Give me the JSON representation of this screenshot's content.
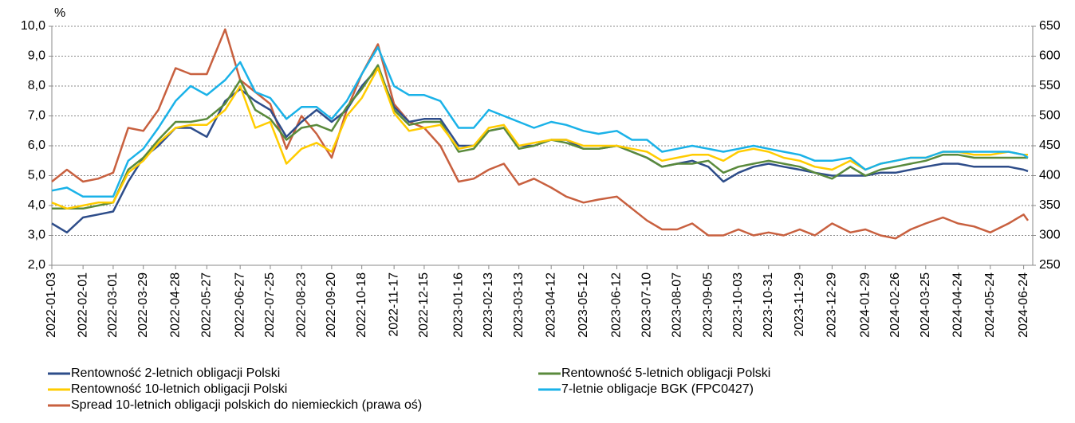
{
  "chart_data": {
    "type": "line",
    "ylabel": "%",
    "x": [
      "2022-01-03",
      "2022-01-17",
      "2022-02-01",
      "2022-02-15",
      "2022-03-01",
      "2022-03-15",
      "2022-03-29",
      "2022-04-12",
      "2022-04-28",
      "2022-05-12",
      "2022-05-27",
      "2022-06-13",
      "2022-06-27",
      "2022-07-11",
      "2022-07-25",
      "2022-08-09",
      "2022-08-23",
      "2022-09-06",
      "2022-09-20",
      "2022-10-04",
      "2022-10-18",
      "2022-11-02",
      "2022-11-17",
      "2022-12-01",
      "2022-12-15",
      "2022-12-30",
      "2023-01-16",
      "2023-01-30",
      "2023-02-13",
      "2023-02-27",
      "2023-03-13",
      "2023-03-27",
      "2023-04-12",
      "2023-04-26",
      "2023-05-12",
      "2023-05-26",
      "2023-06-12",
      "2023-06-26",
      "2023-07-10",
      "2023-07-24",
      "2023-08-07",
      "2023-08-21",
      "2023-09-05",
      "2023-09-19",
      "2023-10-03",
      "2023-10-17",
      "2023-10-31",
      "2023-11-14",
      "2023-11-29",
      "2023-12-13",
      "2023-12-29",
      "2024-01-15",
      "2024-01-29",
      "2024-02-12",
      "2024-02-26",
      "2024-03-11",
      "2024-03-25",
      "2024-04-10",
      "2024-04-24",
      "2024-05-09",
      "2024-05-24",
      "2024-06-10",
      "2024-06-24",
      "2024-06-28"
    ],
    "series": [
      {
        "name": "Rentowność 2-letnich obligacji Polski",
        "color": "#2e4d8a",
        "values": [
          3.4,
          3.1,
          3.6,
          3.7,
          3.8,
          4.8,
          5.6,
          6.0,
          6.6,
          6.6,
          6.3,
          7.5,
          7.9,
          7.5,
          7.2,
          6.3,
          6.8,
          7.2,
          6.8,
          7.2,
          8.0,
          8.6,
          7.3,
          6.8,
          6.9,
          6.9,
          6.0,
          6.0,
          6.5,
          6.6,
          6.0,
          6.0,
          6.2,
          6.2,
          5.9,
          5.9,
          6.0,
          5.8,
          5.6,
          5.3,
          5.4,
          5.5,
          5.3,
          4.8,
          5.1,
          5.3,
          5.4,
          5.3,
          5.2,
          5.1,
          5.0,
          5.0,
          5.0,
          5.1,
          5.1,
          5.2,
          5.3,
          5.4,
          5.4,
          5.3,
          5.3,
          5.3,
          5.2,
          5.15
        ]
      },
      {
        "name": "Rentowność 5-letnich obligacji Polski",
        "color": "#5a8a3c",
        "values": [
          3.9,
          3.9,
          3.9,
          4.0,
          4.1,
          5.2,
          5.6,
          6.2,
          6.8,
          6.8,
          6.9,
          7.4,
          8.2,
          7.2,
          6.9,
          6.2,
          6.6,
          6.7,
          6.5,
          7.3,
          7.9,
          8.7,
          7.2,
          6.7,
          6.8,
          6.8,
          5.8,
          5.9,
          6.5,
          6.6,
          5.9,
          6.0,
          6.2,
          6.1,
          5.9,
          5.9,
          6.0,
          5.8,
          5.6,
          5.3,
          5.4,
          5.4,
          5.5,
          5.1,
          5.3,
          5.4,
          5.5,
          5.4,
          5.3,
          5.1,
          4.9,
          5.3,
          5.0,
          5.2,
          5.3,
          5.4,
          5.5,
          5.7,
          5.7,
          5.6,
          5.6,
          5.6,
          5.6,
          5.6
        ]
      },
      {
        "name": "Rentowność 10-letnich obligacji Polski",
        "color": "#ffcc00",
        "values": [
          4.1,
          3.9,
          4.0,
          4.1,
          4.1,
          5.1,
          5.5,
          6.1,
          6.6,
          6.7,
          6.7,
          7.2,
          8.0,
          6.6,
          6.8,
          5.4,
          5.9,
          6.1,
          5.8,
          7.0,
          7.6,
          8.6,
          7.1,
          6.5,
          6.6,
          6.7,
          5.9,
          6.0,
          6.6,
          6.7,
          6.0,
          6.1,
          6.2,
          6.2,
          6.0,
          6.0,
          6.0,
          5.9,
          5.8,
          5.5,
          5.6,
          5.7,
          5.7,
          5.5,
          5.8,
          5.9,
          5.8,
          5.6,
          5.5,
          5.3,
          5.2,
          5.5,
          5.2,
          5.4,
          5.5,
          5.6,
          5.6,
          5.8,
          5.8,
          5.7,
          5.7,
          5.8,
          5.7,
          5.7
        ]
      },
      {
        "name": "7-letnie obligacje BGK (FPC0427)",
        "color": "#1ab2e8",
        "values": [
          4.5,
          4.6,
          4.3,
          4.3,
          4.3,
          5.5,
          5.9,
          6.6,
          7.5,
          8.0,
          7.7,
          8.2,
          8.8,
          7.8,
          7.6,
          6.9,
          7.3,
          7.3,
          6.9,
          7.5,
          8.4,
          9.3,
          8.0,
          7.7,
          7.7,
          7.5,
          6.6,
          6.6,
          7.2,
          7.0,
          6.8,
          6.6,
          6.8,
          6.7,
          6.5,
          6.4,
          6.5,
          6.2,
          6.2,
          5.8,
          5.9,
          6.0,
          5.9,
          5.8,
          5.9,
          6.0,
          5.9,
          5.8,
          5.7,
          5.5,
          5.5,
          5.6,
          5.2,
          5.4,
          5.5,
          5.6,
          5.6,
          5.8,
          5.8,
          5.8,
          5.8,
          5.8,
          5.7,
          5.6
        ]
      },
      {
        "name": "Spread 10-letnich obligacji polskich do niemieckich (prawa oś)",
        "color": "#c8603f",
        "axis": "y2",
        "values": [
          390,
          410,
          390,
          395,
          405,
          480,
          475,
          510,
          580,
          570,
          570,
          645,
          560,
          540,
          520,
          445,
          500,
          470,
          430,
          510,
          570,
          620,
          520,
          490,
          480,
          450,
          390,
          395,
          410,
          420,
          385,
          395,
          380,
          365,
          355,
          360,
          365,
          345,
          325,
          310,
          310,
          320,
          300,
          300,
          310,
          300,
          305,
          300,
          310,
          300,
          320,
          305,
          310,
          300,
          295,
          310,
          320,
          330,
          320,
          315,
          305,
          320,
          335,
          325
        ]
      }
    ],
    "xlim": [
      "2022-01-03",
      "2024-06-28"
    ],
    "xticks": [
      "2022-01-03",
      "2022-02-01",
      "2022-03-01",
      "2022-03-29",
      "2022-04-28",
      "2022-05-27",
      "2022-06-27",
      "2022-07-25",
      "2022-08-23",
      "2022-09-20",
      "2022-10-18",
      "2022-11-17",
      "2022-12-15",
      "2023-01-16",
      "2023-02-13",
      "2023-03-13",
      "2023-04-12",
      "2023-05-12",
      "2023-06-12",
      "2023-07-10",
      "2023-08-07",
      "2023-09-05",
      "2023-10-03",
      "2023-10-31",
      "2023-11-29",
      "2023-12-29",
      "2024-01-29",
      "2024-02-26",
      "2024-03-25",
      "2024-04-24",
      "2024-05-24",
      "2024-06-24"
    ],
    "ylim": [
      2,
      10
    ],
    "yticks": [
      {
        "value": 2,
        "label": "2,0"
      },
      {
        "value": 3,
        "label": "3,0"
      },
      {
        "value": 4,
        "label": "4,0"
      },
      {
        "value": 5,
        "label": "5,0"
      },
      {
        "value": 6,
        "label": "6,0"
      },
      {
        "value": 7,
        "label": "7,0"
      },
      {
        "value": 8,
        "label": "8,0"
      },
      {
        "value": 9,
        "label": "9,0"
      },
      {
        "value": 10,
        "label": "10,0"
      }
    ],
    "y2lim": [
      250,
      650
    ],
    "y2ticks": [
      250,
      300,
      350,
      400,
      450,
      500,
      550,
      600,
      650
    ],
    "grid": true
  }
}
